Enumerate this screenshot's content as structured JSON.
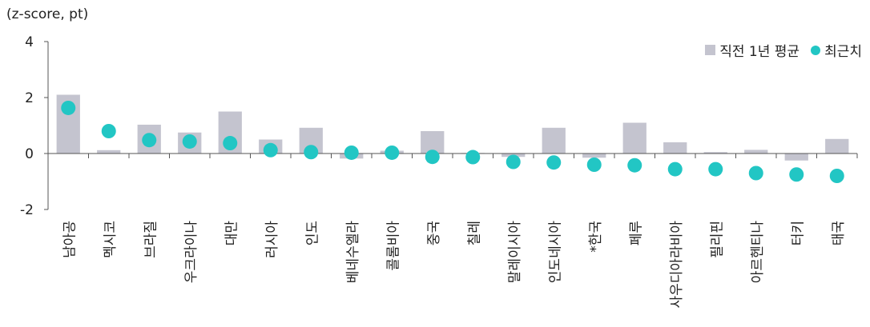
{
  "chart_data": {
    "type": "bar",
    "unit_label": "(z-score, pt)",
    "categories": [
      "남아공",
      "멕시코",
      "브라질",
      "우크라이나",
      "대만",
      "러시아",
      "인도",
      "베네수엘라",
      "콜롬비아",
      "중국",
      "칠레",
      "말레이시아",
      "인도네시아",
      "*한국",
      "페루",
      "사우디아라비아",
      "필리핀",
      "아르헨티나",
      "터키",
      "태국"
    ],
    "series": [
      {
        "name": "직전 1년 평균",
        "type": "bar",
        "color": "#c4c4cf",
        "values": [
          2.1,
          0.12,
          1.03,
          0.75,
          1.5,
          0.5,
          0.92,
          -0.18,
          0.1,
          0.8,
          0.02,
          -0.12,
          0.92,
          -0.15,
          1.1,
          0.4,
          0.05,
          0.13,
          -0.25,
          0.52
        ]
      },
      {
        "name": "최근치",
        "type": "scatter",
        "color": "#22c6c4",
        "values": [
          1.63,
          0.8,
          0.48,
          0.43,
          0.37,
          0.12,
          0.05,
          0.03,
          0.03,
          -0.12,
          -0.13,
          -0.3,
          -0.32,
          -0.4,
          -0.42,
          -0.56,
          -0.56,
          -0.7,
          -0.75,
          -0.8
        ]
      }
    ],
    "yticks": [
      "4",
      "2",
      "0",
      "-2"
    ],
    "ylim": [
      -2,
      4
    ],
    "legend_position": "top-right",
    "grid": false
  }
}
